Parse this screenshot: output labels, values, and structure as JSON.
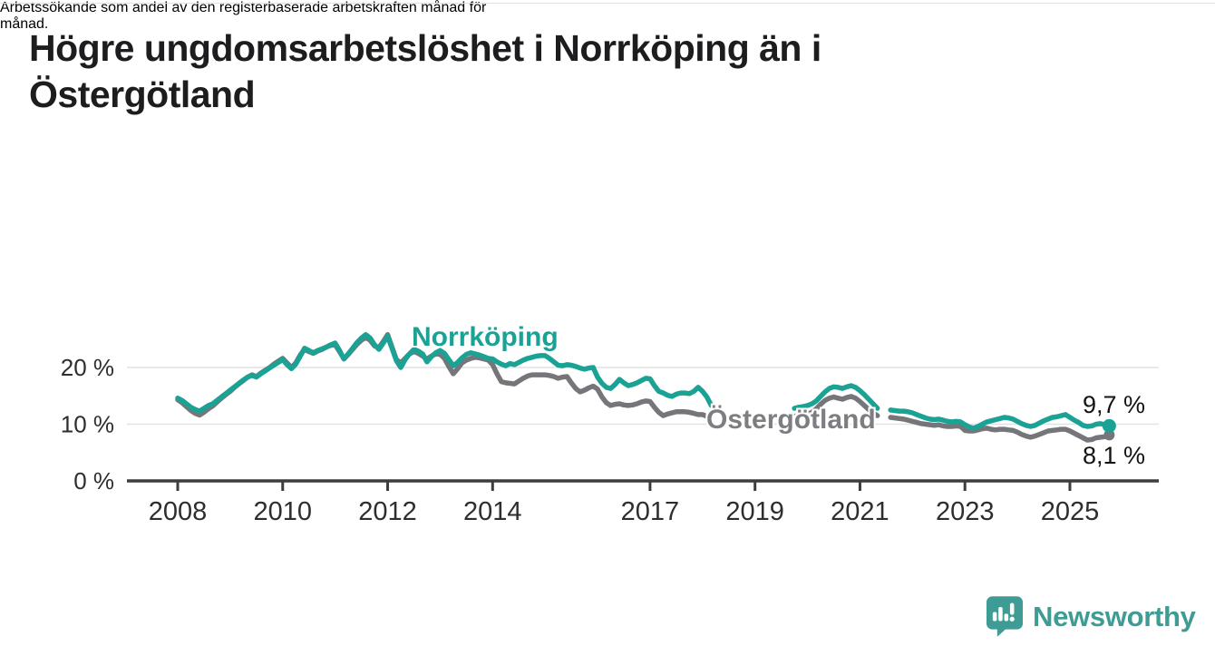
{
  "title": {
    "line1": "Högre ungdomsarbetslöshet i Norrköping än i",
    "line2": "Östergötland"
  },
  "subtitle": {
    "line1": "Arbetssökande som andel av den registerbaserade arbetskraften månad för",
    "line2": "månad."
  },
  "chart_data": {
    "type": "line",
    "unit": "%",
    "frequency": "monthly",
    "x_start": "2008-01",
    "x_end": "2025-10",
    "ylim": [
      0,
      27
    ],
    "grid": "horizontal",
    "legend_position": "inline-labels",
    "yticks": [
      {
        "value": 0,
        "label": "0 %"
      },
      {
        "value": 10,
        "label": "10 %"
      },
      {
        "value": 20,
        "label": "20 %"
      }
    ],
    "xticks": [
      {
        "year": 2008,
        "label": "2008"
      },
      {
        "year": 2010,
        "label": "2010"
      },
      {
        "year": 2012,
        "label": "2012"
      },
      {
        "year": 2014,
        "label": "2014"
      },
      {
        "year": 2017,
        "label": "2017"
      },
      {
        "year": 2019,
        "label": "2019"
      },
      {
        "year": 2021,
        "label": "2021"
      },
      {
        "year": 2023,
        "label": "2023"
      },
      {
        "year": 2025,
        "label": "2025"
      }
    ],
    "data_gaps": [
      "2018-04..2019-09",
      "2021-06..2021-07"
    ],
    "series": [
      {
        "name": "Norrköping",
        "color": "#1aa294",
        "end_label": "9,7 %",
        "end_value": 9.7,
        "values": [
          14.6,
          14.2,
          13.6,
          13.0,
          12.6,
          12.3,
          12.8,
          13.3,
          13.6,
          14.2,
          14.8,
          15.4,
          16.0,
          16.6,
          17.2,
          17.8,
          18.3,
          18.6,
          18.3,
          18.9,
          19.4,
          19.9,
          20.4,
          20.9,
          21.4,
          20.5,
          19.8,
          20.6,
          22.0,
          23.4,
          23.0,
          22.6,
          23.0,
          23.3,
          23.6,
          24.0,
          24.3,
          23.0,
          21.5,
          22.4,
          23.4,
          24.4,
          25.2,
          25.8,
          25.2,
          24.0,
          23.2,
          24.3,
          25.5,
          23.4,
          21.2,
          20.0,
          21.4,
          22.4,
          23.2,
          22.9,
          22.4,
          21.0,
          21.9,
          22.6,
          23.0,
          22.5,
          21.4,
          20.3,
          20.9,
          21.7,
          22.3,
          22.6,
          22.4,
          22.2,
          21.9,
          21.6,
          21.5,
          21.0,
          20.6,
          20.3,
          20.7,
          20.5,
          20.9,
          21.3,
          21.6,
          21.8,
          22.0,
          22.1,
          22.1,
          21.6,
          21.0,
          20.4,
          20.3,
          20.5,
          20.4,
          20.2,
          19.9,
          19.7,
          19.9,
          20.0,
          18.3,
          17.2,
          16.5,
          16.3,
          17.0,
          17.9,
          17.3,
          16.8,
          17.0,
          17.3,
          17.7,
          18.1,
          18.0,
          16.8,
          15.8,
          15.5,
          15.1,
          14.9,
          15.3,
          15.5,
          15.5,
          15.4,
          15.8,
          16.5,
          15.8,
          14.8,
          13.3,
          null,
          null,
          null,
          null,
          null,
          null,
          null,
          null,
          null,
          null,
          null,
          null,
          null,
          null,
          null,
          null,
          null,
          null,
          12.8,
          13.0,
          13.1,
          13.3,
          13.6,
          14.1,
          14.9,
          15.7,
          16.3,
          16.6,
          16.5,
          16.3,
          16.6,
          16.8,
          16.5,
          15.9,
          15.2,
          14.4,
          13.6,
          12.8,
          null,
          null,
          12.5,
          12.4,
          12.3,
          12.3,
          12.2,
          12.0,
          11.7,
          11.4,
          11.1,
          10.9,
          10.8,
          10.9,
          10.7,
          10.5,
          10.4,
          10.5,
          10.4,
          9.9,
          9.5,
          9.3,
          9.6,
          10.0,
          10.4,
          10.6,
          10.8,
          11.0,
          11.2,
          11.1,
          10.9,
          10.5,
          10.1,
          9.8,
          9.6,
          9.8,
          10.2,
          10.6,
          10.9,
          11.2,
          11.3,
          11.5,
          11.7,
          11.2,
          10.7,
          10.3,
          9.8,
          9.6,
          9.7,
          10.0,
          10.1,
          9.9,
          9.7
        ]
      },
      {
        "name": "Östergötland",
        "color": "#76767a",
        "end_label": "8,1 %",
        "end_value": 8.1,
        "values": [
          14.3,
          13.8,
          13.1,
          12.4,
          11.9,
          11.6,
          12.1,
          12.7,
          13.2,
          13.9,
          14.6,
          15.2,
          15.8,
          16.5,
          17.1,
          17.7,
          18.3,
          18.7,
          18.4,
          19.0,
          19.5,
          20.0,
          20.6,
          21.1,
          21.6,
          20.8,
          20.0,
          20.8,
          22.2,
          23.2,
          22.8,
          22.5,
          22.9,
          23.2,
          23.6,
          23.9,
          24.0,
          22.8,
          21.5,
          22.3,
          23.2,
          24.1,
          24.8,
          25.3,
          24.8,
          23.8,
          23.5,
          24.6,
          25.8,
          23.6,
          21.4,
          20.8,
          21.6,
          22.4,
          22.8,
          22.5,
          22.0,
          21.5,
          22.0,
          22.4,
          22.3,
          21.6,
          20.2,
          18.9,
          19.8,
          20.8,
          21.3,
          21.6,
          21.8,
          21.7,
          21.5,
          21.3,
          20.5,
          18.9,
          17.5,
          17.3,
          17.2,
          17.1,
          17.6,
          18.1,
          18.5,
          18.7,
          18.7,
          18.7,
          18.7,
          18.6,
          18.4,
          18.1,
          18.3,
          18.4,
          17.3,
          16.3,
          15.7,
          16.0,
          16.4,
          16.7,
          16.2,
          14.8,
          13.8,
          13.3,
          13.5,
          13.6,
          13.4,
          13.3,
          13.4,
          13.6,
          13.9,
          14.1,
          14.0,
          13.0,
          12.1,
          11.5,
          11.8,
          12.0,
          12.2,
          12.2,
          12.2,
          12.1,
          11.9,
          11.7,
          11.7,
          11.4,
          11.2,
          null,
          null,
          null,
          null,
          null,
          null,
          null,
          null,
          null,
          null,
          null,
          null,
          null,
          null,
          null,
          null,
          null,
          null,
          11.4,
          11.5,
          11.6,
          11.8,
          12.1,
          12.7,
          13.5,
          14.2,
          14.6,
          14.8,
          14.6,
          14.4,
          14.7,
          14.9,
          14.6,
          14.0,
          13.3,
          12.6,
          12.0,
          11.5,
          null,
          null,
          11.2,
          11.1,
          11.0,
          10.9,
          10.7,
          10.5,
          10.3,
          10.1,
          10.0,
          9.9,
          9.8,
          9.9,
          9.7,
          9.6,
          9.6,
          9.7,
          9.6,
          8.9,
          8.8,
          8.8,
          9.0,
          9.2,
          9.3,
          9.1,
          9.0,
          9.1,
          9.1,
          9.0,
          8.9,
          8.6,
          8.2,
          7.9,
          7.7,
          7.9,
          8.2,
          8.5,
          8.8,
          8.9,
          9.0,
          9.1,
          9.1,
          8.8,
          8.4,
          8.0,
          7.6,
          7.2,
          7.3,
          7.6,
          7.7,
          7.8,
          8.1
        ]
      }
    ]
  },
  "branding": {
    "name": "Newsworthy",
    "icon": "newsworthy-bubble-chart-icon",
    "color": "#3e9c95"
  }
}
